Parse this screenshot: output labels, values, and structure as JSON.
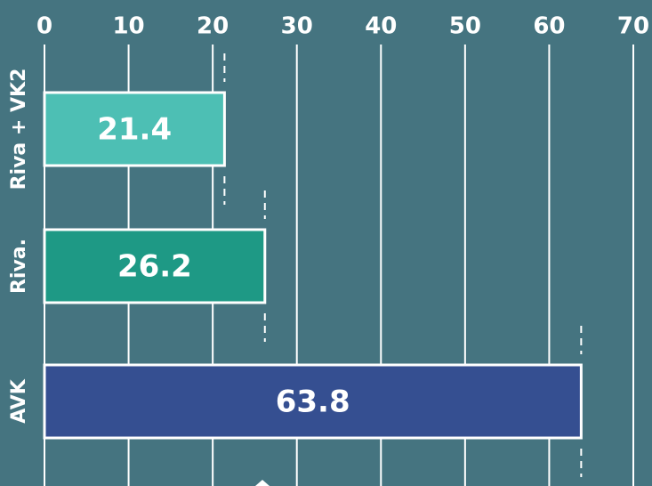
{
  "chart_data": {
    "type": "bar",
    "orientation": "horizontal",
    "categories": [
      "Riva + VK2",
      "Riva.",
      "AVK"
    ],
    "values": [
      21.4,
      26.2,
      63.8
    ],
    "colors": [
      "#4dbfb4",
      "#1e9985",
      "#354f91"
    ],
    "xlim": [
      0,
      70
    ],
    "xticks": [
      0,
      10,
      20,
      30,
      40,
      50,
      60,
      70
    ],
    "grid": true
  }
}
